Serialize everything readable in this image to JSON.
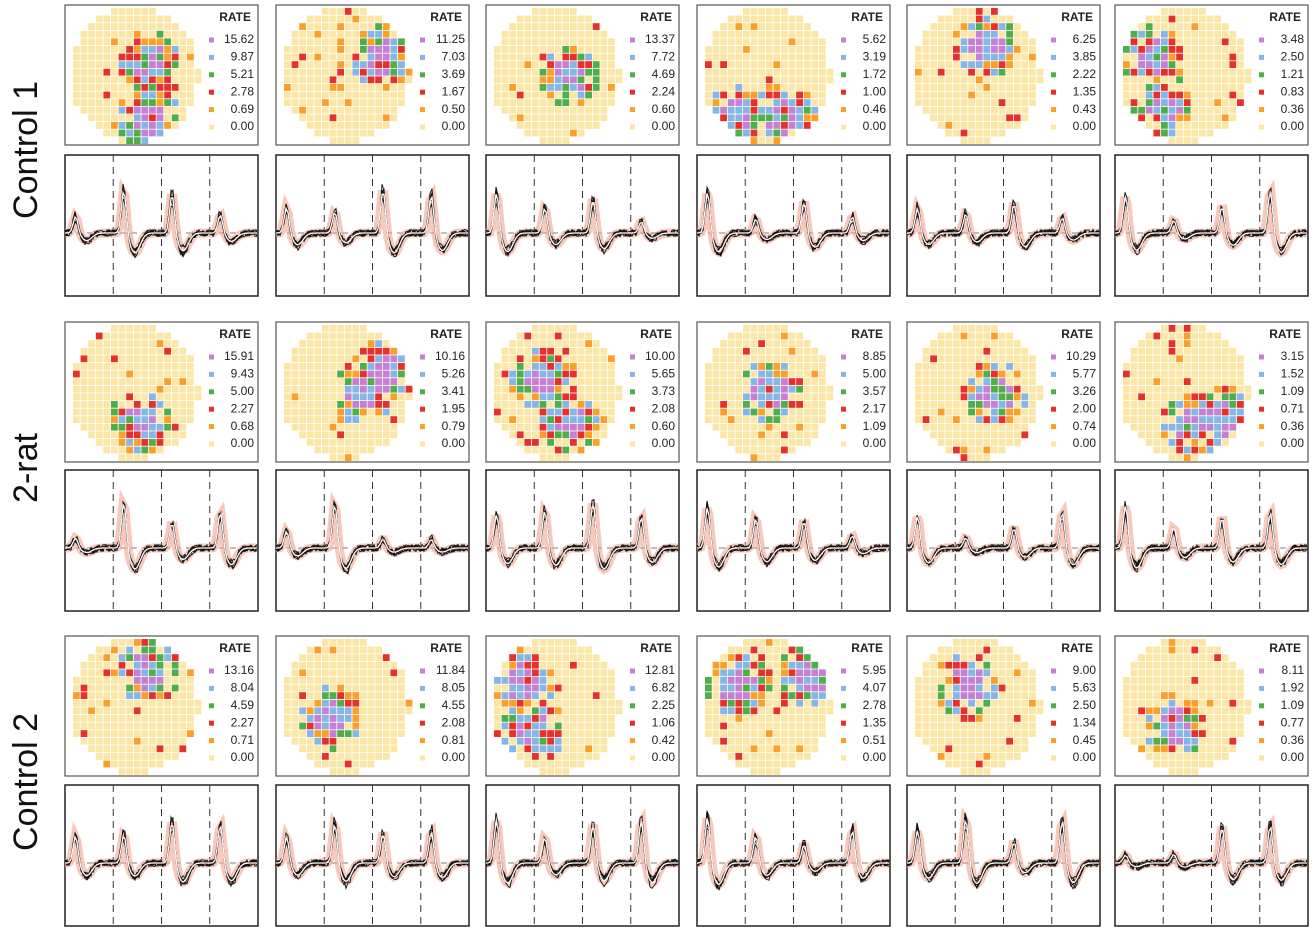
{
  "legend_title": "RATE",
  "rows": [
    {
      "label": "Control 1",
      "panels": [
        {
          "legend_values": [
            "15.62",
            "9.87",
            "5.21",
            "2.78",
            "0.69",
            "0.00"
          ]
        },
        {
          "legend_values": [
            "11.25",
            "7.03",
            "3.69",
            "1.67",
            "0.50",
            "0.00"
          ]
        },
        {
          "legend_values": [
            "13.37",
            "7.72",
            "4.69",
            "2.24",
            "0.60",
            "0.00"
          ]
        },
        {
          "legend_values": [
            "5.62",
            "3.19",
            "1.72",
            "1.00",
            "0.46",
            "0.00"
          ]
        },
        {
          "legend_values": [
            "6.25",
            "3.85",
            "2.22",
            "1.35",
            "0.43",
            "0.00"
          ]
        },
        {
          "legend_values": [
            "3.48",
            "2.50",
            "1.21",
            "0.83",
            "0.36",
            "0.00"
          ]
        }
      ]
    },
    {
      "label": "2-rat",
      "panels": [
        {
          "legend_values": [
            "15.91",
            "9.43",
            "5.00",
            "2.27",
            "0.68",
            "0.00"
          ]
        },
        {
          "legend_values": [
            "10.16",
            "5.26",
            "3.41",
            "1.95",
            "0.79",
            "0.00"
          ]
        },
        {
          "legend_values": [
            "10.00",
            "5.65",
            "3.73",
            "2.08",
            "0.60",
            "0.00"
          ]
        },
        {
          "legend_values": [
            "8.85",
            "5.00",
            "3.57",
            "2.17",
            "1.09",
            "0.00"
          ]
        },
        {
          "legend_values": [
            "10.29",
            "5.77",
            "3.26",
            "2.00",
            "0.74",
            "0.00"
          ]
        },
        {
          "legend_values": [
            "3.15",
            "1.52",
            "1.09",
            "0.71",
            "0.36",
            "0.00"
          ]
        }
      ]
    },
    {
      "label": "Control 2",
      "panels": [
        {
          "legend_values": [
            "13.16",
            "8.04",
            "4.59",
            "2.27",
            "0.71",
            "0.00"
          ]
        },
        {
          "legend_values": [
            "11.84",
            "8.05",
            "4.55",
            "2.08",
            "0.81",
            "0.00"
          ]
        },
        {
          "legend_values": [
            "12.81",
            "6.82",
            "2.25",
            "1.06",
            "0.42",
            "0.00"
          ]
        },
        {
          "legend_values": [
            "5.95",
            "4.07",
            "2.78",
            "1.35",
            "0.51",
            "0.00"
          ]
        },
        {
          "legend_values": [
            "9.00",
            "5.63",
            "2.50",
            "1.34",
            "0.45",
            "0.00"
          ]
        },
        {
          "legend_values": [
            "8.11",
            "1.92",
            "1.09",
            "0.77",
            "0.36",
            "0.00"
          ]
        }
      ]
    }
  ]
}
